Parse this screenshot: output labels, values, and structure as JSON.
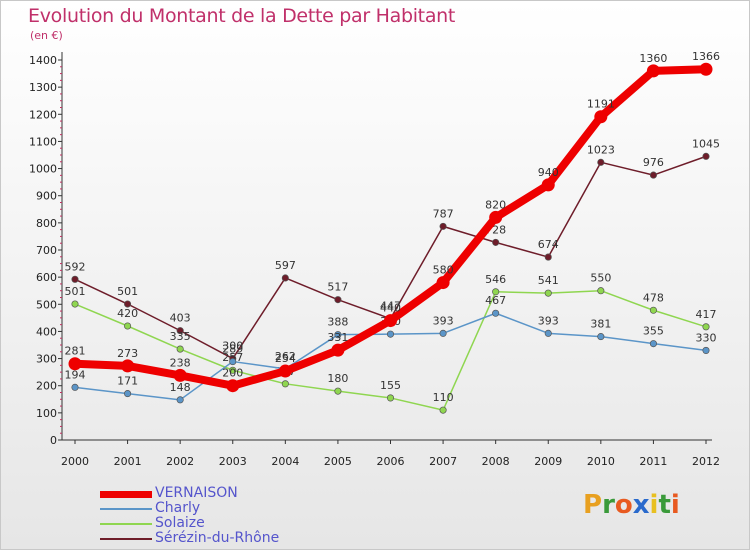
{
  "header": {
    "title": "Evolution du Montant de la Dette par Habitant",
    "subtitle": "(en €)"
  },
  "logo": {
    "text": "Proxiti",
    "letter_colors": [
      "#e8a020",
      "#3a9a3a",
      "#e85a20",
      "#2a6acc",
      "#e8c020",
      "#3a9a3a",
      "#e85a20"
    ]
  },
  "chart_data": {
    "type": "line",
    "title": "Evolution du Montant de la Dette par Habitant",
    "ylabel": "(en €)",
    "xlabel": "",
    "x": [
      "2000",
      "2001",
      "2002",
      "2003",
      "2004",
      "2005",
      "2006",
      "2007",
      "2008",
      "2009",
      "2010",
      "2011",
      "2012"
    ],
    "ylim": [
      0,
      1400
    ],
    "yticks": [
      "0",
      "100",
      "200",
      "300",
      "400",
      "500",
      "600",
      "700",
      "800",
      "900",
      "1000",
      "1100",
      "1200",
      "1300",
      "1400"
    ],
    "grid": false,
    "legend_position": "bottom-left",
    "series": [
      {
        "name": "Sérézin-du-Rhône",
        "color": "#6e1d2a",
        "values": [
          592,
          501,
          403,
          300,
          597,
          517,
          447,
          787,
          728,
          674,
          1023,
          976,
          1045
        ],
        "labels": [
          "592",
          "501",
          "403",
          "300",
          "597",
          "517",
          "447",
          "787",
          "728",
          "674",
          "1023",
          "976",
          "1045"
        ]
      },
      {
        "name": "Solaize",
        "color": "#8fd650",
        "values": [
          501,
          420,
          335,
          257,
          207,
          180,
          155,
          110,
          546,
          541,
          550,
          478,
          417
        ],
        "labels": [
          "501",
          "420",
          "335",
          "257",
          "207",
          "180",
          "155",
          "110",
          "546",
          "541",
          "550",
          "478",
          "417"
        ]
      },
      {
        "name": "Charly",
        "color": "#5b95c8",
        "values": [
          194,
          171,
          148,
          289,
          262,
          388,
          390,
          393,
          467,
          393,
          381,
          355,
          330
        ],
        "labels": [
          "194",
          "171",
          "148",
          "289",
          "262",
          "388",
          "390",
          "393",
          "467",
          "393",
          "381",
          "355",
          "330"
        ]
      },
      {
        "name": "VERNAISON",
        "color": "#ee0000",
        "values": [
          281,
          273,
          238,
          200,
          254,
          331,
          440,
          580,
          820,
          940,
          1191,
          1360,
          1366
        ],
        "labels": [
          "281",
          "273",
          "238",
          "200",
          "254",
          "331",
          "440",
          "580",
          "820",
          "940",
          "1191",
          "1360",
          "1366"
        ]
      }
    ]
  },
  "legend": {
    "items": [
      {
        "label": "VERNAISON",
        "color": "#ee0000",
        "width": 7
      },
      {
        "label": "Charly",
        "color": "#5b95c8",
        "width": 2
      },
      {
        "label": "Solaize",
        "color": "#8fd650",
        "width": 2
      },
      {
        "label": "Sérézin-du-Rhône",
        "color": "#6e1d2a",
        "width": 2
      }
    ]
  }
}
